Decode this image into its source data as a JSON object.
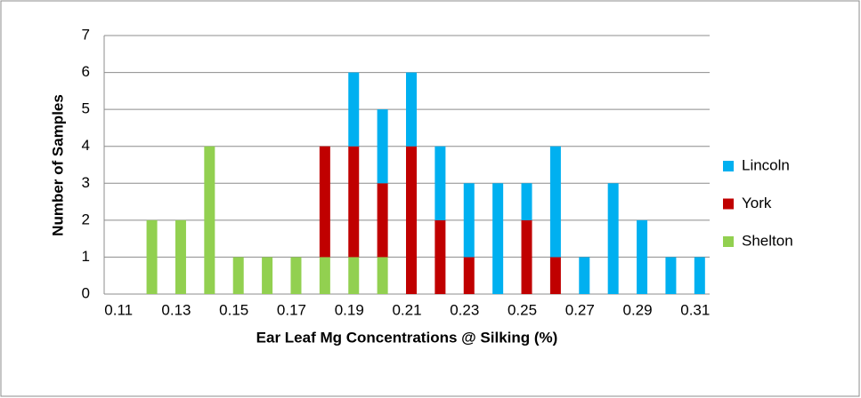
{
  "chart_data": {
    "type": "stacked-bar",
    "x_label": "Ear Leaf Mg Concentrations @ Silking (%)",
    "y_label": "Number of Samples",
    "categories": [
      "0.11",
      null,
      "0.13",
      null,
      "0.15",
      null,
      "0.17",
      null,
      "0.19",
      null,
      "0.21",
      null,
      "0.23",
      null,
      "0.25",
      null,
      "0.27",
      null,
      "0.29",
      null,
      "0.31"
    ],
    "series": [
      {
        "name": "Lincoln",
        "color": "#00b0f0",
        "values": [
          0,
          0,
          0,
          0,
          0,
          0,
          0,
          0,
          2,
          2,
          2,
          2,
          2,
          3,
          1,
          3,
          1,
          3,
          2,
          1,
          1
        ]
      },
      {
        "name": "York",
        "color": "#c00000",
        "values": [
          0,
          0,
          0,
          0,
          0,
          0,
          0,
          3,
          3,
          2,
          4,
          2,
          1,
          0,
          2,
          1,
          0,
          0,
          0,
          0,
          0
        ]
      },
      {
        "name": "Shelton",
        "color": "#92d050",
        "values": [
          0,
          2,
          2,
          4,
          1,
          1,
          1,
          1,
          1,
          1,
          0,
          0,
          0,
          0,
          0,
          0,
          0,
          0,
          0,
          0,
          0
        ]
      }
    ],
    "ylim": [
      0,
      7
    ],
    "yticks": [
      0,
      1,
      2,
      3,
      4,
      5,
      6,
      7
    ],
    "grid": true,
    "legend": "right"
  }
}
